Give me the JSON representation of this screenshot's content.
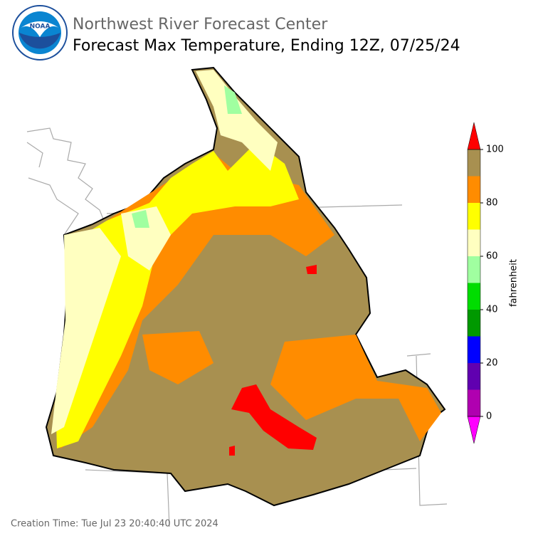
{
  "header": {
    "org": "Northwest River Forecast Center",
    "title": "Forecast Max Temperature, Ending 12Z, 07/25/24"
  },
  "colorbar": {
    "label": "fahrenheit",
    "ticks": [
      0,
      20,
      40,
      60,
      80,
      100
    ],
    "bins": [
      0,
      10,
      20,
      30,
      40,
      50,
      60,
      70,
      80,
      90,
      100
    ],
    "colors": [
      "#b000b0",
      "#6000b0",
      "#0000ff",
      "#009900",
      "#00dd00",
      "#a0ffa0",
      "#ffffc0",
      "#ffff00",
      "#ff8c00",
      "#a89050"
    ],
    "under_color": "#ff00ff",
    "over_color": "#ff0000"
  },
  "footer": {
    "creation_time": "Creation Time: Tue Jul 23 20:40:40 UTC 2024"
  }
}
